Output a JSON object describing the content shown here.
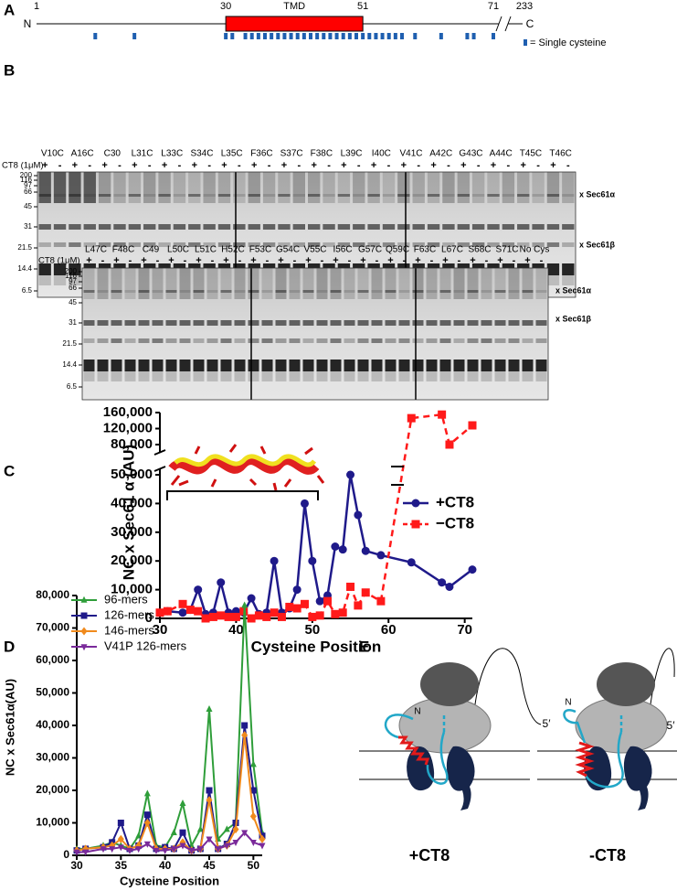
{
  "panel_labels": [
    "A",
    "B",
    "C",
    "D",
    "E"
  ],
  "topology": {
    "residues": [
      1,
      30,
      51,
      71,
      233
    ],
    "tmd": "TMD",
    "n_term": "N",
    "c_term": "C",
    "legend": "= Single cysteine",
    "cysteine_positions": [
      10,
      16,
      30,
      31,
      33,
      34,
      35,
      36,
      37,
      38,
      39,
      40,
      41,
      42,
      43,
      44,
      45,
      46,
      47,
      48,
      49,
      50,
      51,
      52,
      53,
      54,
      55,
      56,
      57,
      59,
      63,
      67,
      68,
      71
    ],
    "color": "#1f5fb0"
  },
  "gels": [
    {
      "ct8_label": "CT8 (1μM)",
      "treatments": [
        "+",
        "-"
      ],
      "markers": [
        200,
        116,
        97,
        66,
        45,
        31,
        21.5,
        14.4,
        6.5
      ],
      "bands": [
        "x Sec61α",
        "x Sec61β"
      ],
      "lanes": [
        "V10C",
        "A16C",
        "C30",
        "L31C",
        "L33C",
        "S34C",
        "L35C",
        "F36C",
        "S37C",
        "F38C",
        "L39C",
        "I40C",
        "V41C",
        "A42C",
        "G43C",
        "A44C",
        "T45C",
        "T46C"
      ]
    },
    {
      "ct8_label": "CT8 (1μM)",
      "treatments": [
        "+",
        "-"
      ],
      "markers": [
        200,
        116,
        97,
        66,
        45,
        31,
        21.5,
        14.4,
        6.5
      ],
      "bands": [
        "x Sec61α",
        "x Sec61β"
      ],
      "lanes": [
        "L47C",
        "F48C",
        "C49",
        "L50C",
        "L51C",
        "H52C",
        "F53C",
        "G54C",
        "V55C",
        "I56C",
        "G57C",
        "Q59C",
        "F63C",
        "L67C",
        "S68C",
        "S71C",
        "No Cys"
      ]
    }
  ],
  "chart_data": [
    {
      "type": "line",
      "x_label": "Cysteine Position",
      "y_label": "NC x Sec61 α (AU)",
      "xlim": [
        30,
        71
      ],
      "xticks": [
        30,
        40,
        50,
        60,
        70
      ],
      "ylim": [
        0,
        160000
      ],
      "y_break": [
        50000,
        80000
      ],
      "yticks": [
        0,
        {
          "value": 10000,
          "label": "10,000"
        },
        {
          "value": 20000,
          "label": "20,000"
        },
        {
          "value": 30000,
          "label": "30,000"
        },
        {
          "value": 40000,
          "label": "40,000"
        },
        {
          "value": 50000,
          "label": "50,000"
        },
        {
          "value": 80000,
          "label": "80,000"
        },
        {
          "value": 120000,
          "label": "120,000"
        },
        {
          "value": 160000,
          "label": "160,000"
        }
      ],
      "legend": "right",
      "series": [
        {
          "name": "+CT8",
          "color": "#1f1a8a",
          "marker": "circle",
          "dashed": false,
          "x": [
            30,
            31,
            33,
            34,
            35,
            36,
            37,
            38,
            39,
            40,
            41,
            42,
            43,
            44,
            45,
            46,
            47,
            48,
            49,
            50,
            51,
            52,
            53,
            54,
            55,
            56,
            57,
            59,
            63,
            67,
            68,
            71
          ],
          "values": [
            2000,
            2500,
            2000,
            3000,
            10000,
            1500,
            2000,
            12500,
            2000,
            2500,
            2000,
            7000,
            1500,
            2000,
            20000,
            2000,
            3500,
            10000,
            40000,
            20000,
            6000,
            8000,
            25000,
            24000,
            50000,
            36000,
            23500,
            22000,
            19500,
            12500,
            11000,
            17000
          ]
        },
        {
          "name": "−CT8",
          "color": "#ff1a1a",
          "marker": "square",
          "dashed": true,
          "x": [
            30,
            31,
            33,
            34,
            35,
            36,
            37,
            38,
            39,
            40,
            41,
            42,
            43,
            44,
            45,
            46,
            47,
            48,
            49,
            50,
            51,
            52,
            53,
            54,
            55,
            56,
            57,
            59,
            63,
            67,
            68,
            71
          ],
          "values": [
            2000,
            2500,
            5000,
            3000,
            2500,
            0,
            500,
            1000,
            500,
            500,
            2500,
            0,
            1000,
            500,
            2000,
            500,
            4000,
            3500,
            5000,
            500,
            1000,
            6000,
            1500,
            2000,
            11000,
            4500,
            9000,
            6000,
            146000,
            155000,
            80000,
            128000
          ]
        }
      ]
    },
    {
      "type": "line",
      "x_label": "Cysteine Position",
      "y_label": "NC x Sec61α(AU)",
      "xlim": [
        30,
        51
      ],
      "xticks": [
        30,
        35,
        40,
        45,
        50
      ],
      "ylim": [
        0,
        80000
      ],
      "yticks": [
        0,
        {
          "value": 10000,
          "label": "10,000"
        },
        {
          "value": 20000,
          "label": "20,000"
        },
        {
          "value": 30000,
          "label": "30,000"
        },
        {
          "value": 40000,
          "label": "40,000"
        },
        {
          "value": 50000,
          "label": "50,000"
        },
        {
          "value": 60000,
          "label": "60,000"
        },
        {
          "value": 70000,
          "label": "70,000"
        },
        {
          "value": 80000,
          "label": "80,000"
        }
      ],
      "legend": "upper left",
      "x": [
        30,
        31,
        33,
        34,
        35,
        36,
        37,
        38,
        39,
        40,
        41,
        42,
        43,
        44,
        45,
        46,
        47,
        48,
        49,
        50,
        51
      ],
      "series": [
        {
          "name": "96-mers",
          "color": "#2f9e3a",
          "marker": "triangle-up",
          "values": [
            2000,
            2000,
            3000,
            4000,
            3000,
            2000,
            6000,
            19000,
            3000,
            2500,
            7000,
            16000,
            3000,
            8000,
            45000,
            5000,
            8000,
            10000,
            77000,
            28000,
            7000
          ]
        },
        {
          "name": "126-mers",
          "color": "#1f1a8a",
          "marker": "square",
          "values": [
            1500,
            2000,
            2500,
            4000,
            10000,
            2000,
            3000,
            12500,
            2000,
            2500,
            2000,
            7000,
            1500,
            2000,
            20000,
            2000,
            3500,
            10000,
            40000,
            20000,
            6000
          ]
        },
        {
          "name": "146-mers",
          "color": "#f08a1c",
          "marker": "diamond",
          "values": [
            1500,
            2000,
            2500,
            3000,
            5000,
            2000,
            3000,
            10000,
            2000,
            2000,
            2000,
            4000,
            1500,
            2000,
            17000,
            2000,
            3000,
            8000,
            37000,
            12000,
            5000
          ]
        },
        {
          "name": "V41P 126-mers",
          "color": "#7a2a9a",
          "marker": "triangle-down",
          "values": [
            1000,
            1000,
            2000,
            2000,
            2500,
            1500,
            2000,
            3500,
            1500,
            1500,
            2000,
            3000,
            1500,
            2000,
            5000,
            2000,
            3000,
            4000,
            7000,
            4000,
            3000
          ]
        }
      ]
    }
  ],
  "schematic": {
    "n_label": "N",
    "five_prime": "5′",
    "conditions": [
      "+CT8",
      "-CT8"
    ]
  }
}
